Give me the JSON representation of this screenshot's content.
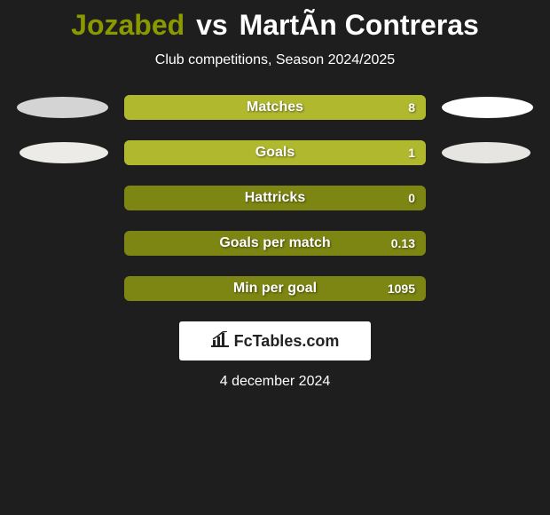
{
  "title": {
    "player1": "Jozabed",
    "vs": "vs",
    "player2": "MartÃ­n Contreras",
    "player1_color": "#8a9900",
    "player2_color": "#ffffff"
  },
  "subtitle": "Club competitions, Season 2024/2025",
  "bar_colors": {
    "outer": "#7d8612",
    "inner": "#b0b92e"
  },
  "ellipse_colors": {
    "left_row1": "#d4d4d4",
    "left_row2": "#ecebe8",
    "right_row1": "#ffffff",
    "right_row2": "#e6e5e1"
  },
  "rows": [
    {
      "label": "Matches",
      "value": "8",
      "fill_percent": 100,
      "left_ellipse": {
        "w": 103,
        "h": 24,
        "color": "#d4d4d4"
      },
      "right_ellipse": {
        "w": 103,
        "h": 24,
        "color": "#ffffff"
      }
    },
    {
      "label": "Goals",
      "value": "1",
      "fill_percent": 100,
      "left_ellipse": {
        "w": 100,
        "h": 24,
        "color": "#ecebe8",
        "offset": 2
      },
      "right_ellipse": {
        "w": 100,
        "h": 24,
        "color": "#e6e5e1",
        "offset": 2
      }
    },
    {
      "label": "Hattricks",
      "value": "0",
      "fill_percent": 0,
      "left_ellipse": null,
      "right_ellipse": null
    },
    {
      "label": "Goals per match",
      "value": "0.13",
      "fill_percent": 0,
      "left_ellipse": null,
      "right_ellipse": null
    },
    {
      "label": "Min per goal",
      "value": "1095",
      "fill_percent": 0,
      "left_ellipse": null,
      "right_ellipse": null
    }
  ],
  "logo": "FcTables.com",
  "date": "4 december 2024",
  "background_color": "#1e1e1e"
}
